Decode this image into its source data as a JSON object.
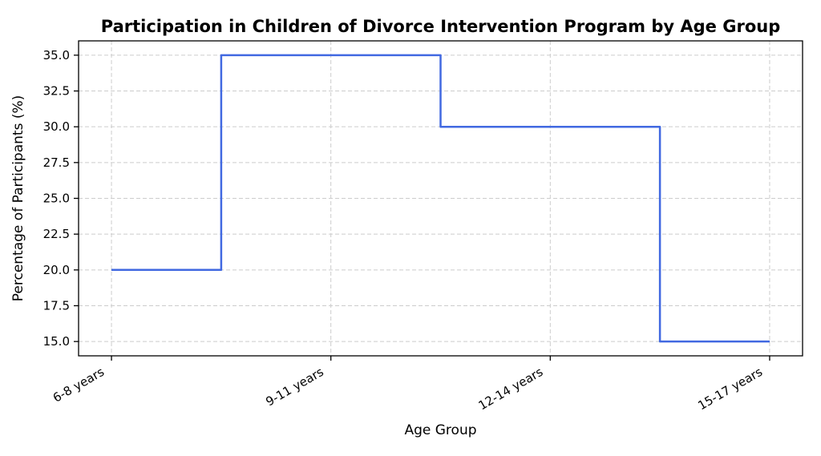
{
  "chart_data": {
    "type": "line",
    "style": "step",
    "step_where": "mid",
    "title": "Participation in Children of Divorce Intervention Program by Age Group",
    "xlabel": "Age Group",
    "ylabel": "Percentage of Participants (%)",
    "categories": [
      "6-8 years",
      "9-11 years",
      "12-14 years",
      "15-17 years"
    ],
    "values": [
      20.0,
      35.0,
      30.0,
      15.0
    ],
    "ytick_labels": [
      "15.0",
      "17.5",
      "20.0",
      "22.5",
      "25.0",
      "27.5",
      "30.0",
      "32.5",
      "35.0"
    ],
    "ytick_values": [
      15.0,
      17.5,
      20.0,
      22.5,
      25.0,
      27.5,
      30.0,
      32.5,
      35.0
    ],
    "ylim": [
      14.0,
      36.0
    ],
    "xlim": [
      -0.15,
      3.15
    ],
    "grid": "dashed",
    "legend_position": "none",
    "line_color": "#4169E1",
    "grid_color": "#cccccc",
    "axis_color": "#000000",
    "background_color": "#ffffff",
    "x_tick_label_rotation_deg": 30
  }
}
